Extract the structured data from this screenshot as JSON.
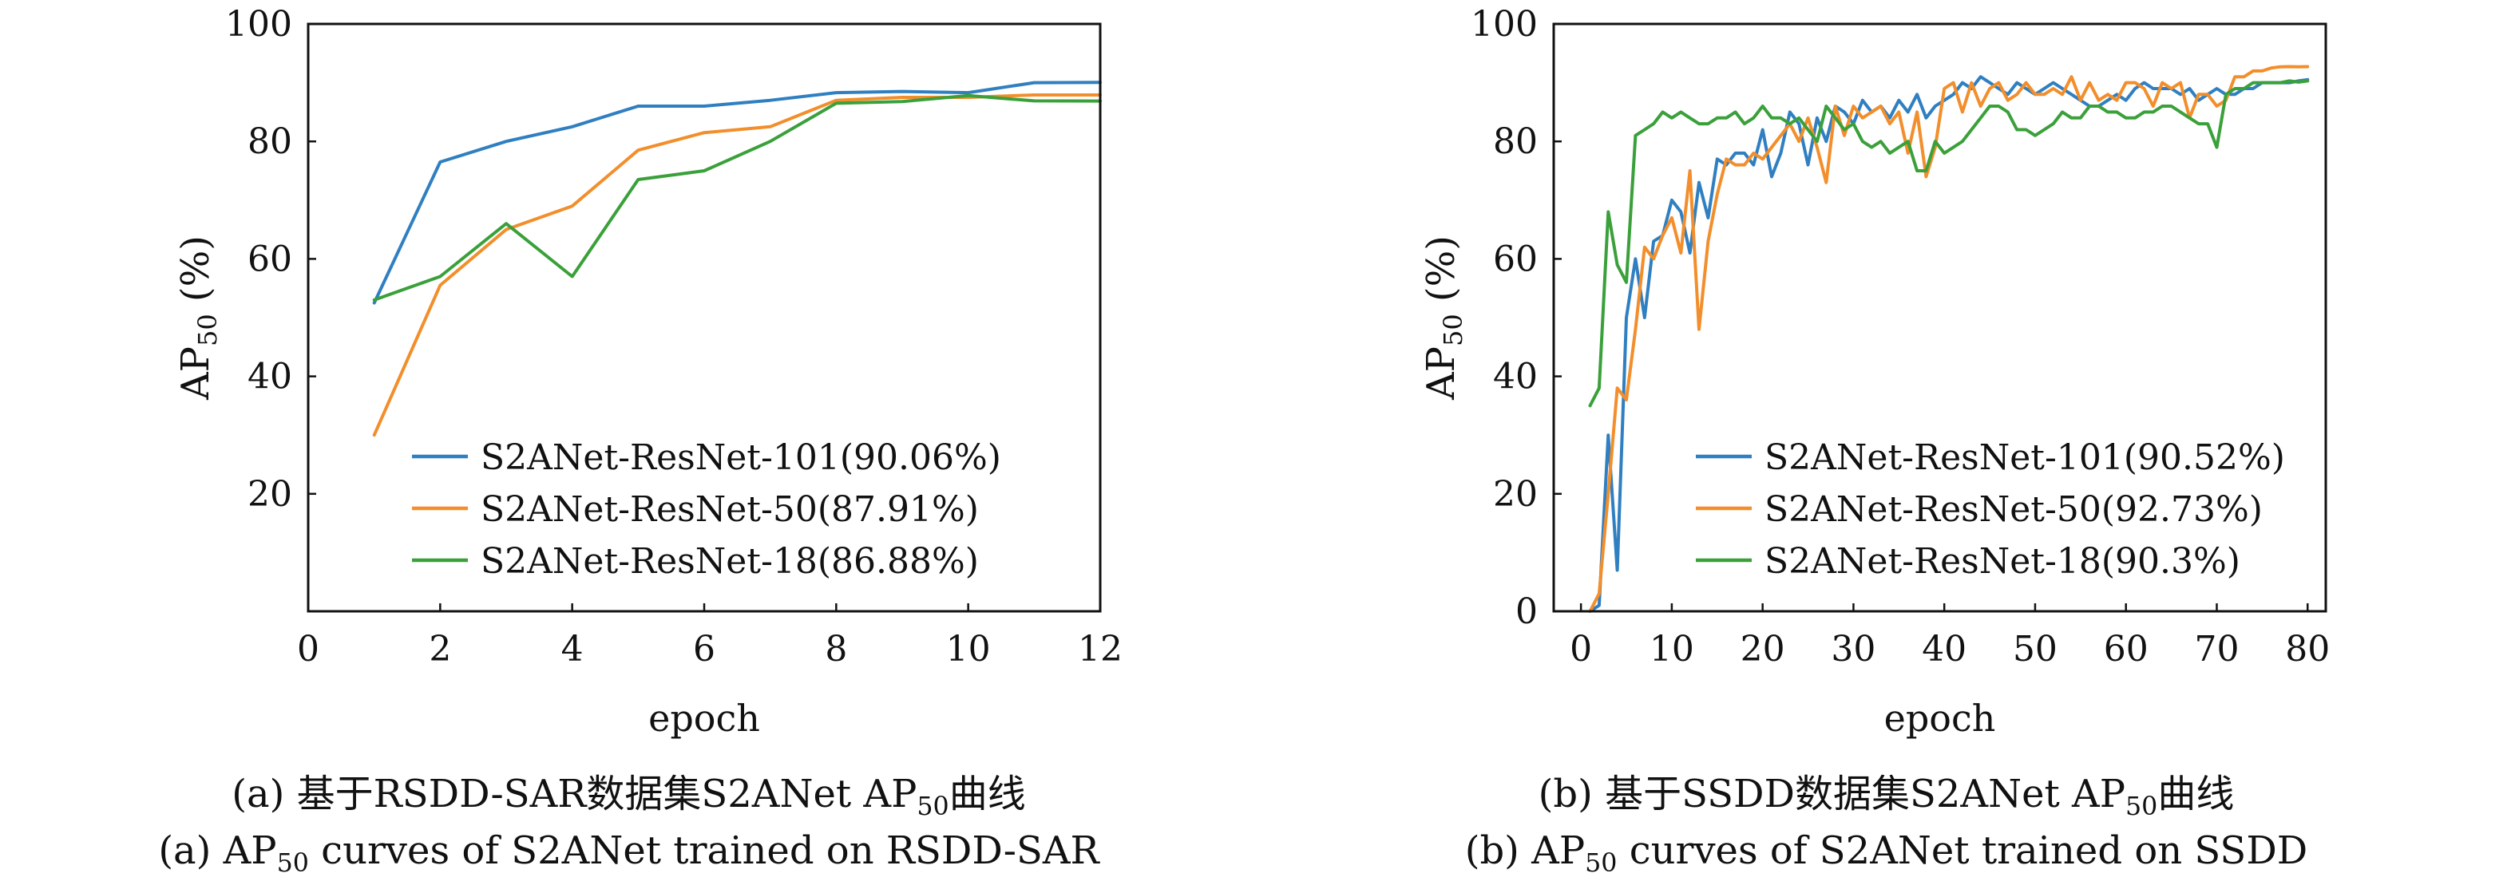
{
  "chart_data": [
    {
      "type": "line",
      "panel_label": "(a)",
      "caption_cn": {
        "pre": "(a) 基于RSDD-SAR数据集S2ANet AP",
        "sub": "50",
        "post": "曲线"
      },
      "caption_en": {
        "pre": "(a) AP",
        "sub": "50",
        "post": " curves of S2ANet trained on RSDD-SAR"
      },
      "xlabel": "epoch",
      "ylabel": {
        "main": "AP",
        "sub": "50",
        "unit": " (%)"
      },
      "xlim": [
        0,
        12
      ],
      "ylim": [
        0,
        100
      ],
      "xticks": [
        0,
        2,
        4,
        6,
        8,
        10,
        12
      ],
      "yticks": [
        20,
        40,
        60,
        80,
        100
      ],
      "grid": false,
      "legend_position": "lower-right",
      "series": [
        {
          "name": "S2ANet-ResNet-101(90.06%)",
          "color": "#2f7fc1",
          "x": [
            1,
            2,
            3,
            4,
            5,
            6,
            7,
            8,
            9,
            10,
            11,
            12
          ],
          "y": [
            52.5,
            76.5,
            80,
            82.5,
            86,
            86,
            87,
            88.3,
            88.5,
            88.3,
            90,
            90.06
          ]
        },
        {
          "name": "S2ANet-ResNet-50(87.91%)",
          "color": "#f28e2b",
          "x": [
            1,
            2,
            3,
            4,
            5,
            6,
            7,
            8,
            9,
            10,
            11,
            12
          ],
          "y": [
            30,
            55.5,
            65,
            69,
            78.5,
            81.5,
            82.5,
            87,
            87.5,
            87.5,
            87.91,
            87.91
          ]
        },
        {
          "name": "S2ANet-ResNet-18(86.88%)",
          "color": "#3aa03a",
          "x": [
            1,
            2,
            3,
            4,
            5,
            6,
            7,
            8,
            9,
            10,
            11,
            12
          ],
          "y": [
            53,
            57,
            66,
            57,
            73.5,
            75,
            80,
            86.5,
            86.8,
            87.8,
            86.9,
            86.88
          ]
        }
      ]
    },
    {
      "type": "line",
      "panel_label": "(b)",
      "caption_cn": {
        "pre": "(b) 基于SSDD数据集S2ANet AP",
        "sub": "50",
        "post": "曲线"
      },
      "caption_en": {
        "pre": "(b) AP",
        "sub": "50",
        "post": " curves of S2ANet trained on SSDD"
      },
      "xlabel": "epoch",
      "ylabel": {
        "main": "AP",
        "sub": "50",
        "unit": " (%)"
      },
      "xlim": [
        -3,
        82
      ],
      "ylim": [
        0,
        100
      ],
      "xticks": [
        0,
        10,
        20,
        30,
        40,
        50,
        60,
        70,
        80
      ],
      "yticks": [
        0,
        20,
        40,
        60,
        80,
        100
      ],
      "grid": false,
      "legend_position": "lower-right",
      "series": [
        {
          "name": "S2ANet-ResNet-101(90.52%)",
          "color": "#2f7fc1",
          "x": [
            1,
            2,
            3,
            4,
            5,
            6,
            7,
            8,
            9,
            10,
            11,
            12,
            13,
            14,
            15,
            16,
            17,
            18,
            19,
            20,
            21,
            22,
            23,
            24,
            25,
            26,
            27,
            28,
            29,
            30,
            31,
            32,
            33,
            34,
            35,
            36,
            37,
            38,
            39,
            40,
            41,
            42,
            43,
            44,
            45,
            46,
            47,
            48,
            49,
            50,
            51,
            52,
            53,
            54,
            55,
            56,
            57,
            58,
            59,
            60,
            61,
            62,
            63,
            64,
            65,
            66,
            67,
            68,
            69,
            70,
            71,
            72,
            73,
            74,
            75,
            76,
            77,
            78,
            79,
            80
          ],
          "y": [
            0,
            1,
            30,
            7,
            50,
            60,
            50,
            63,
            64,
            70,
            68,
            61,
            73,
            67,
            77,
            76,
            78,
            78,
            76,
            82,
            74,
            78,
            85,
            83,
            76,
            84,
            80,
            86,
            85,
            83,
            87,
            85,
            86,
            84,
            87,
            85,
            88,
            84,
            86,
            87,
            88,
            90,
            89,
            91,
            90,
            89,
            88,
            90,
            89,
            88,
            89,
            90,
            89,
            88,
            87,
            86,
            86,
            87,
            88,
            87,
            89,
            90,
            89,
            89,
            89,
            88,
            89,
            87,
            88,
            89,
            88,
            88,
            89,
            89,
            90,
            90,
            90,
            90,
            90.3,
            90.52
          ]
        },
        {
          "name": "S2ANet-ResNet-50(92.73%)",
          "color": "#f28e2b",
          "x": [
            1,
            2,
            3,
            4,
            5,
            6,
            7,
            8,
            9,
            10,
            11,
            12,
            13,
            14,
            15,
            16,
            17,
            18,
            19,
            20,
            21,
            22,
            23,
            24,
            25,
            26,
            27,
            28,
            29,
            30,
            31,
            32,
            33,
            34,
            35,
            36,
            37,
            38,
            39,
            40,
            41,
            42,
            43,
            44,
            45,
            46,
            47,
            48,
            49,
            50,
            51,
            52,
            53,
            54,
            55,
            56,
            57,
            58,
            59,
            60,
            61,
            62,
            63,
            64,
            65,
            66,
            67,
            68,
            69,
            70,
            71,
            72,
            73,
            74,
            75,
            76,
            77,
            78,
            79,
            80
          ],
          "y": [
            0,
            3,
            20,
            38,
            36,
            48,
            62,
            60,
            64,
            67,
            61,
            75,
            48,
            63,
            71,
            77,
            76,
            76,
            78,
            77,
            79,
            81,
            83,
            80,
            84,
            79,
            73,
            86,
            81,
            86,
            84,
            85,
            86,
            83,
            85,
            78,
            85,
            74,
            79,
            89,
            90,
            85,
            90,
            86,
            89,
            90,
            87,
            88,
            90,
            88,
            88,
            89,
            88,
            91,
            87,
            90,
            87,
            88,
            87,
            90,
            90,
            89,
            86,
            90,
            89,
            90,
            84,
            88,
            88,
            86,
            87,
            91,
            91,
            92,
            92,
            92.5,
            92.7,
            92.73,
            92.7,
            92.73
          ]
        },
        {
          "name": "S2ANet-ResNet-18(90.3%)",
          "color": "#3aa03a",
          "x": [
            1,
            2,
            3,
            4,
            5,
            6,
            7,
            8,
            9,
            10,
            11,
            12,
            13,
            14,
            15,
            16,
            17,
            18,
            19,
            20,
            21,
            22,
            23,
            24,
            25,
            26,
            27,
            28,
            29,
            30,
            31,
            32,
            33,
            34,
            35,
            36,
            37,
            38,
            39,
            40,
            41,
            42,
            43,
            44,
            45,
            46,
            47,
            48,
            49,
            50,
            51,
            52,
            53,
            54,
            55,
            56,
            57,
            58,
            59,
            60,
            61,
            62,
            63,
            64,
            65,
            66,
            67,
            68,
            69,
            70,
            71,
            72,
            73,
            74,
            75,
            76,
            77,
            78,
            79,
            80
          ],
          "y": [
            35,
            38,
            68,
            59,
            56,
            81,
            82,
            83,
            85,
            84,
            85,
            84,
            83,
            83,
            84,
            84,
            85,
            83,
            84,
            86,
            84,
            84,
            83,
            84,
            82,
            80,
            86,
            84,
            82,
            83,
            80,
            79,
            80,
            78,
            79,
            80,
            75,
            75,
            80,
            78,
            79,
            80,
            82,
            84,
            86,
            86,
            85,
            82,
            82,
            81,
            82,
            83,
            85,
            84,
            84,
            86,
            86,
            85,
            85,
            84,
            84,
            85,
            85,
            86,
            86,
            85,
            84,
            83,
            83,
            79,
            88,
            89,
            89,
            90,
            90,
            90,
            90,
            90.3,
            90.1,
            90.3
          ]
        }
      ]
    }
  ]
}
